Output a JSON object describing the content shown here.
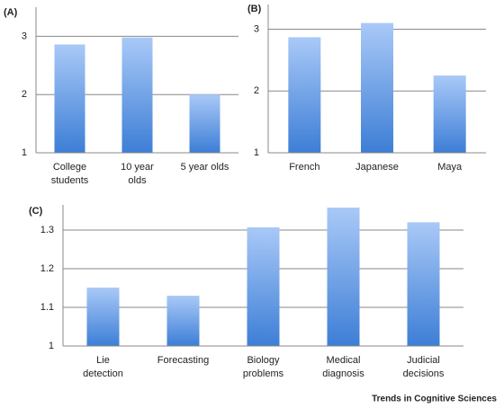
{
  "chart_data": [
    {
      "type": "bar",
      "panel_label": "(A)",
      "categories": [
        "College students",
        "10 year olds",
        "5 year olds"
      ],
      "values": [
        2.86,
        2.98,
        2.0
      ],
      "ylim": [
        1,
        3.5
      ],
      "yticks": [
        1,
        2,
        3
      ],
      "grid": true,
      "color": [
        "#a9c9f7",
        "#3d7ed6"
      ]
    },
    {
      "type": "bar",
      "panel_label": "(B)",
      "categories": [
        "French",
        "Japanese",
        "Maya"
      ],
      "values": [
        2.87,
        3.1,
        2.25
      ],
      "ylim": [
        1,
        3.4
      ],
      "yticks": [
        1,
        2,
        3
      ],
      "grid": true,
      "color": [
        "#a9c9f7",
        "#3d7ed6"
      ]
    },
    {
      "type": "bar",
      "panel_label": "(C)",
      "categories": [
        "Lie detection",
        "Forecasting",
        "Biology problems",
        "Medical diagnosis",
        "Judicial decisions"
      ],
      "values": [
        1.151,
        1.13,
        1.307,
        1.358,
        1.32
      ],
      "ylim": [
        1,
        1.365
      ],
      "yticks": [
        1,
        1.1,
        1.2,
        1.3
      ],
      "grid": true,
      "color": [
        "#a9c9f7",
        "#3d7ed6"
      ]
    }
  ],
  "footer": "Trends in Cognitive Sciences"
}
